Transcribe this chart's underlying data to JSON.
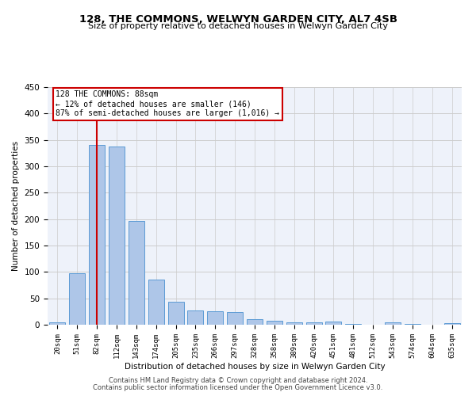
{
  "title": "128, THE COMMONS, WELWYN GARDEN CITY, AL7 4SB",
  "subtitle": "Size of property relative to detached houses in Welwyn Garden City",
  "xlabel": "Distribution of detached houses by size in Welwyn Garden City",
  "ylabel": "Number of detached properties",
  "bar_labels": [
    "20sqm",
    "51sqm",
    "82sqm",
    "112sqm",
    "143sqm",
    "174sqm",
    "205sqm",
    "235sqm",
    "266sqm",
    "297sqm",
    "328sqm",
    "358sqm",
    "389sqm",
    "420sqm",
    "451sqm",
    "481sqm",
    "512sqm",
    "543sqm",
    "574sqm",
    "604sqm",
    "635sqm"
  ],
  "bar_values": [
    5,
    98,
    340,
    338,
    197,
    85,
    43,
    27,
    25,
    24,
    10,
    8,
    5,
    4,
    6,
    1,
    0,
    4,
    1,
    0,
    3
  ],
  "bar_color": "#aec6e8",
  "bar_edge_color": "#5b9bd5",
  "highlight_bar_index": 2,
  "highlight_line_color": "#cc0000",
  "annotation_line1": "128 THE COMMONS: 88sqm",
  "annotation_line2": "← 12% of detached houses are smaller (146)",
  "annotation_line3": "87% of semi-detached houses are larger (1,016) →",
  "annotation_box_color": "#cc0000",
  "grid_color": "#cccccc",
  "background_color": "#eef2fa",
  "footer_line1": "Contains HM Land Registry data © Crown copyright and database right 2024.",
  "footer_line2": "Contains public sector information licensed under the Open Government Licence v3.0.",
  "ylim": [
    0,
    450
  ],
  "yticks": [
    0,
    50,
    100,
    150,
    200,
    250,
    300,
    350,
    400,
    450
  ]
}
